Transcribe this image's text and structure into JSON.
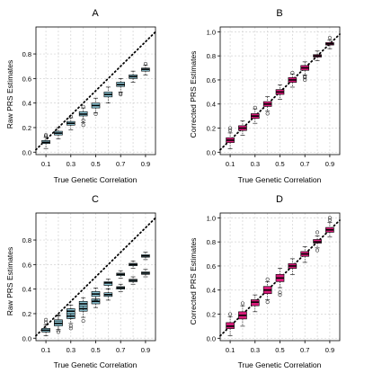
{
  "colors": {
    "raw_box": "#8ec9d9",
    "corrected_box": "#d81b7a",
    "identity_line": "#000000",
    "grid": "#d3d3d3"
  },
  "chart_data": [
    {
      "panel": "A",
      "type": "boxplot",
      "title": "A",
      "xlabel": "True Genetic Correlation",
      "ylabel": "Raw PRS Estimates",
      "x": [
        0.1,
        0.2,
        0.3,
        0.4,
        0.5,
        0.6,
        0.7,
        0.8,
        0.9
      ],
      "xticklabels": [
        "0.1",
        "0.3",
        "0.5",
        "0.7",
        "0.9"
      ],
      "xlim": [
        0.02,
        0.98
      ],
      "ylim": [
        -0.02,
        1.02
      ],
      "yticks": [
        0.0,
        0.2,
        0.4,
        0.6,
        0.8
      ],
      "yticklabels": [
        "0.0",
        "0.2",
        "0.4",
        "0.6",
        "0.8"
      ],
      "grid": true,
      "reference_line": "y = x (dotted)",
      "box_color": "raw_box",
      "boxes": [
        {
          "x": 0.1,
          "q1": 0.07,
          "median": 0.08,
          "q3": 0.095,
          "whislo": 0.03,
          "whishi": 0.12,
          "outliers": [
            0.13,
            0.14
          ]
        },
        {
          "x": 0.2,
          "q1": 0.14,
          "median": 0.155,
          "q3": 0.17,
          "whislo": 0.11,
          "whishi": 0.2,
          "outliers": []
        },
        {
          "x": 0.3,
          "q1": 0.22,
          "median": 0.235,
          "q3": 0.25,
          "whislo": 0.18,
          "whishi": 0.28,
          "outliers": [
            0.29
          ]
        },
        {
          "x": 0.4,
          "q1": 0.295,
          "median": 0.31,
          "q3": 0.33,
          "whislo": 0.24,
          "whishi": 0.36,
          "outliers": [
            0.22,
            0.26,
            0.37
          ]
        },
        {
          "x": 0.5,
          "q1": 0.36,
          "median": 0.38,
          "q3": 0.4,
          "whislo": 0.32,
          "whishi": 0.44,
          "outliers": [
            0.31
          ]
        },
        {
          "x": 0.6,
          "q1": 0.45,
          "median": 0.47,
          "q3": 0.49,
          "whislo": 0.4,
          "whishi": 0.53,
          "outliers": []
        },
        {
          "x": 0.7,
          "q1": 0.535,
          "median": 0.55,
          "q3": 0.57,
          "whislo": 0.49,
          "whishi": 0.6,
          "outliers": [
            0.47,
            0.48
          ]
        },
        {
          "x": 0.8,
          "q1": 0.6,
          "median": 0.615,
          "q3": 0.63,
          "whislo": 0.57,
          "whishi": 0.66,
          "outliers": []
        },
        {
          "x": 0.9,
          "q1": 0.66,
          "median": 0.675,
          "q3": 0.685,
          "whislo": 0.63,
          "whishi": 0.71,
          "outliers": [
            0.72
          ]
        }
      ]
    },
    {
      "panel": "B",
      "type": "boxplot",
      "title": "B",
      "xlabel": "True Genetic Correlation",
      "ylabel": "Corrected PRS Estimates",
      "x": [
        0.1,
        0.2,
        0.3,
        0.4,
        0.5,
        0.6,
        0.7,
        0.8,
        0.9
      ],
      "xticklabels": [
        "0.1",
        "0.3",
        "0.5",
        "0.7",
        "0.9"
      ],
      "xlim": [
        0.02,
        0.98
      ],
      "ylim": [
        -0.02,
        1.04
      ],
      "yticks": [
        0.0,
        0.2,
        0.4,
        0.6,
        0.8,
        1.0
      ],
      "yticklabels": [
        "0.0",
        "0.2",
        "0.4",
        "0.6",
        "0.8",
        "1.0"
      ],
      "grid": true,
      "reference_line": "y = x (dotted)",
      "box_color": "corrected_box",
      "boxes": [
        {
          "x": 0.1,
          "q1": 0.08,
          "median": 0.1,
          "q3": 0.12,
          "whislo": 0.03,
          "whishi": 0.16,
          "outliers": [
            0.18,
            0.2
          ]
        },
        {
          "x": 0.2,
          "q1": 0.18,
          "median": 0.2,
          "q3": 0.22,
          "whislo": 0.14,
          "whishi": 0.26,
          "outliers": []
        },
        {
          "x": 0.3,
          "q1": 0.28,
          "median": 0.3,
          "q3": 0.32,
          "whislo": 0.24,
          "whishi": 0.36,
          "outliers": [
            0.37
          ]
        },
        {
          "x": 0.4,
          "q1": 0.38,
          "median": 0.4,
          "q3": 0.42,
          "whislo": 0.34,
          "whishi": 0.46,
          "outliers": [
            0.32
          ]
        },
        {
          "x": 0.5,
          "q1": 0.48,
          "median": 0.5,
          "q3": 0.52,
          "whislo": 0.44,
          "whishi": 0.56,
          "outliers": []
        },
        {
          "x": 0.6,
          "q1": 0.58,
          "median": 0.6,
          "q3": 0.62,
          "whislo": 0.54,
          "whishi": 0.65,
          "outliers": [
            0.66
          ]
        },
        {
          "x": 0.7,
          "q1": 0.68,
          "median": 0.7,
          "q3": 0.72,
          "whislo": 0.64,
          "whishi": 0.75,
          "outliers": [
            0.6,
            0.62,
            0.63
          ]
        },
        {
          "x": 0.8,
          "q1": 0.79,
          "median": 0.8,
          "q3": 0.81,
          "whislo": 0.76,
          "whishi": 0.84,
          "outliers": []
        },
        {
          "x": 0.9,
          "q1": 0.89,
          "median": 0.9,
          "q3": 0.91,
          "whislo": 0.86,
          "whishi": 0.93,
          "outliers": [
            0.95
          ]
        }
      ]
    },
    {
      "panel": "C",
      "type": "boxplot",
      "title": "C",
      "xlabel": "True Genetic Correlation",
      "ylabel": "Raw PRS Estimates",
      "x": [
        0.1,
        0.2,
        0.3,
        0.4,
        0.5,
        0.6,
        0.7,
        0.8,
        0.9
      ],
      "xticklabels": [
        "0.1",
        "0.3",
        "0.5",
        "0.7",
        "0.9"
      ],
      "xlim": [
        0.02,
        0.98
      ],
      "ylim": [
        -0.02,
        1.02
      ],
      "yticks": [
        0.0,
        0.2,
        0.4,
        0.6,
        0.8
      ],
      "yticklabels": [
        "0.0",
        "0.2",
        "0.4",
        "0.6",
        "0.8"
      ],
      "grid": true,
      "reference_line": "y = x (dotted)",
      "box_color": "raw_box",
      "boxes": [
        {
          "x": 0.1,
          "q1": 0.05,
          "median": 0.065,
          "q3": 0.08,
          "whislo": 0.02,
          "whishi": 0.11,
          "outliers": [
            0.13,
            0.15
          ]
        },
        {
          "x": 0.2,
          "q1": 0.11,
          "median": 0.13,
          "q3": 0.15,
          "whislo": 0.07,
          "whishi": 0.19,
          "outliers": [
            0.05
          ]
        },
        {
          "x": 0.2,
          "q1": 0.1,
          "median": 0.12,
          "q3": 0.14,
          "whislo": 0.06,
          "whishi": 0.18,
          "outliers": []
        },
        {
          "x": 0.3,
          "q1": 0.16,
          "median": 0.18,
          "q3": 0.2,
          "whislo": 0.12,
          "whishi": 0.24,
          "outliers": [
            0.08,
            0.1
          ]
        },
        {
          "x": 0.3,
          "q1": 0.2,
          "median": 0.22,
          "q3": 0.24,
          "whislo": 0.16,
          "whishi": 0.27,
          "outliers": []
        },
        {
          "x": 0.4,
          "q1": 0.22,
          "median": 0.24,
          "q3": 0.26,
          "whislo": 0.17,
          "whishi": 0.3,
          "outliers": [
            0.14
          ]
        },
        {
          "x": 0.4,
          "q1": 0.26,
          "median": 0.28,
          "q3": 0.3,
          "whislo": 0.22,
          "whishi": 0.33,
          "outliers": []
        },
        {
          "x": 0.5,
          "q1": 0.28,
          "median": 0.3,
          "q3": 0.32,
          "whislo": 0.25,
          "whishi": 0.35,
          "outliers": []
        },
        {
          "x": 0.5,
          "q1": 0.34,
          "median": 0.36,
          "q3": 0.38,
          "whislo": 0.31,
          "whishi": 0.41,
          "outliers": []
        },
        {
          "x": 0.6,
          "q1": 0.34,
          "median": 0.355,
          "q3": 0.37,
          "whislo": 0.31,
          "whishi": 0.4,
          "outliers": []
        },
        {
          "x": 0.6,
          "q1": 0.43,
          "median": 0.45,
          "q3": 0.46,
          "whislo": 0.4,
          "whishi": 0.48,
          "outliers": []
        },
        {
          "x": 0.7,
          "q1": 0.4,
          "median": 0.41,
          "q3": 0.42,
          "whislo": 0.38,
          "whishi": 0.44,
          "outliers": []
        },
        {
          "x": 0.7,
          "q1": 0.51,
          "median": 0.52,
          "q3": 0.53,
          "whislo": 0.49,
          "whishi": 0.55,
          "outliers": []
        },
        {
          "x": 0.8,
          "q1": 0.46,
          "median": 0.47,
          "q3": 0.48,
          "whislo": 0.44,
          "whishi": 0.5,
          "outliers": []
        },
        {
          "x": 0.8,
          "q1": 0.59,
          "median": 0.6,
          "q3": 0.61,
          "whislo": 0.57,
          "whishi": 0.63,
          "outliers": []
        },
        {
          "x": 0.9,
          "q1": 0.52,
          "median": 0.53,
          "q3": 0.54,
          "whislo": 0.5,
          "whishi": 0.56,
          "outliers": []
        },
        {
          "x": 0.9,
          "q1": 0.66,
          "median": 0.67,
          "q3": 0.68,
          "whislo": 0.64,
          "whishi": 0.7,
          "outliers": []
        }
      ]
    },
    {
      "panel": "D",
      "type": "boxplot",
      "title": "D",
      "xlabel": "True Genetic Correlation",
      "ylabel": "Corrected PRS Estimates",
      "x": [
        0.1,
        0.2,
        0.3,
        0.4,
        0.5,
        0.6,
        0.7,
        0.8,
        0.9
      ],
      "xticklabels": [
        "0.1",
        "0.3",
        "0.5",
        "0.7",
        "0.9"
      ],
      "xlim": [
        0.02,
        0.98
      ],
      "ylim": [
        -0.02,
        1.04
      ],
      "yticks": [
        0.0,
        0.2,
        0.4,
        0.6,
        0.8,
        1.0
      ],
      "yticklabels": [
        "0.0",
        "0.2",
        "0.4",
        "0.6",
        "0.8",
        "1.0"
      ],
      "grid": true,
      "reference_line": "y = x (dotted)",
      "box_color": "corrected_box",
      "boxes": [
        {
          "x": 0.1,
          "q1": 0.08,
          "median": 0.1,
          "q3": 0.13,
          "whislo": 0.02,
          "whishi": 0.18,
          "outliers": [
            0.2
          ]
        },
        {
          "x": 0.2,
          "q1": 0.16,
          "median": 0.19,
          "q3": 0.22,
          "whislo": 0.1,
          "whishi": 0.27,
          "outliers": [
            0.29
          ]
        },
        {
          "x": 0.3,
          "q1": 0.27,
          "median": 0.3,
          "q3": 0.32,
          "whislo": 0.22,
          "whishi": 0.36,
          "outliers": []
        },
        {
          "x": 0.4,
          "q1": 0.37,
          "median": 0.4,
          "q3": 0.43,
          "whislo": 0.32,
          "whishi": 0.47,
          "outliers": [
            0.49,
            0.3
          ]
        },
        {
          "x": 0.5,
          "q1": 0.47,
          "median": 0.5,
          "q3": 0.53,
          "whislo": 0.42,
          "whishi": 0.58,
          "outliers": [
            0.36,
            0.38
          ]
        },
        {
          "x": 0.6,
          "q1": 0.58,
          "median": 0.6,
          "q3": 0.62,
          "whislo": 0.53,
          "whishi": 0.66,
          "outliers": []
        },
        {
          "x": 0.7,
          "q1": 0.68,
          "median": 0.7,
          "q3": 0.72,
          "whislo": 0.63,
          "whishi": 0.76,
          "outliers": []
        },
        {
          "x": 0.8,
          "q1": 0.79,
          "median": 0.8,
          "q3": 0.82,
          "whislo": 0.75,
          "whishi": 0.85,
          "outliers": [
            0.73,
            0.88
          ]
        },
        {
          "x": 0.9,
          "q1": 0.88,
          "median": 0.9,
          "q3": 0.92,
          "whislo": 0.84,
          "whishi": 0.96,
          "outliers": [
            0.98,
            1.0
          ]
        }
      ]
    }
  ]
}
